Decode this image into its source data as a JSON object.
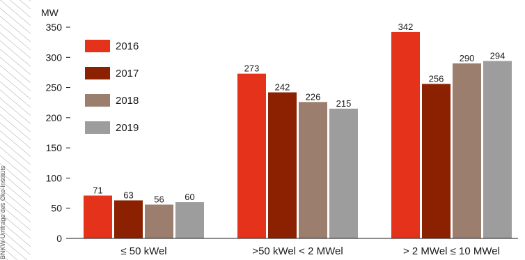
{
  "source": "BNKW-Umfrage des Öko-Instituts",
  "chart_data": {
    "type": "bar",
    "unit": "MW",
    "categories": [
      "≤ 50 kWel",
      ">50 kWel < 2 MWel",
      "> 2 MWel ≤ 10 MWel"
    ],
    "series": [
      {
        "name": "2016",
        "color": "#e5321b",
        "values": [
          71,
          273,
          342
        ]
      },
      {
        "name": "2017",
        "color": "#8b2101",
        "values": [
          63,
          242,
          256
        ]
      },
      {
        "name": "2018",
        "color": "#9b7e6e",
        "values": [
          56,
          226,
          290
        ]
      },
      {
        "name": "2019",
        "color": "#9d9d9d",
        "values": [
          60,
          215,
          294
        ]
      }
    ],
    "ylim": [
      0,
      350
    ],
    "yticks": [
      0,
      50,
      100,
      150,
      200,
      250,
      300,
      350
    ],
    "grid": false,
    "legend": "top-left",
    "data_labels": true
  }
}
